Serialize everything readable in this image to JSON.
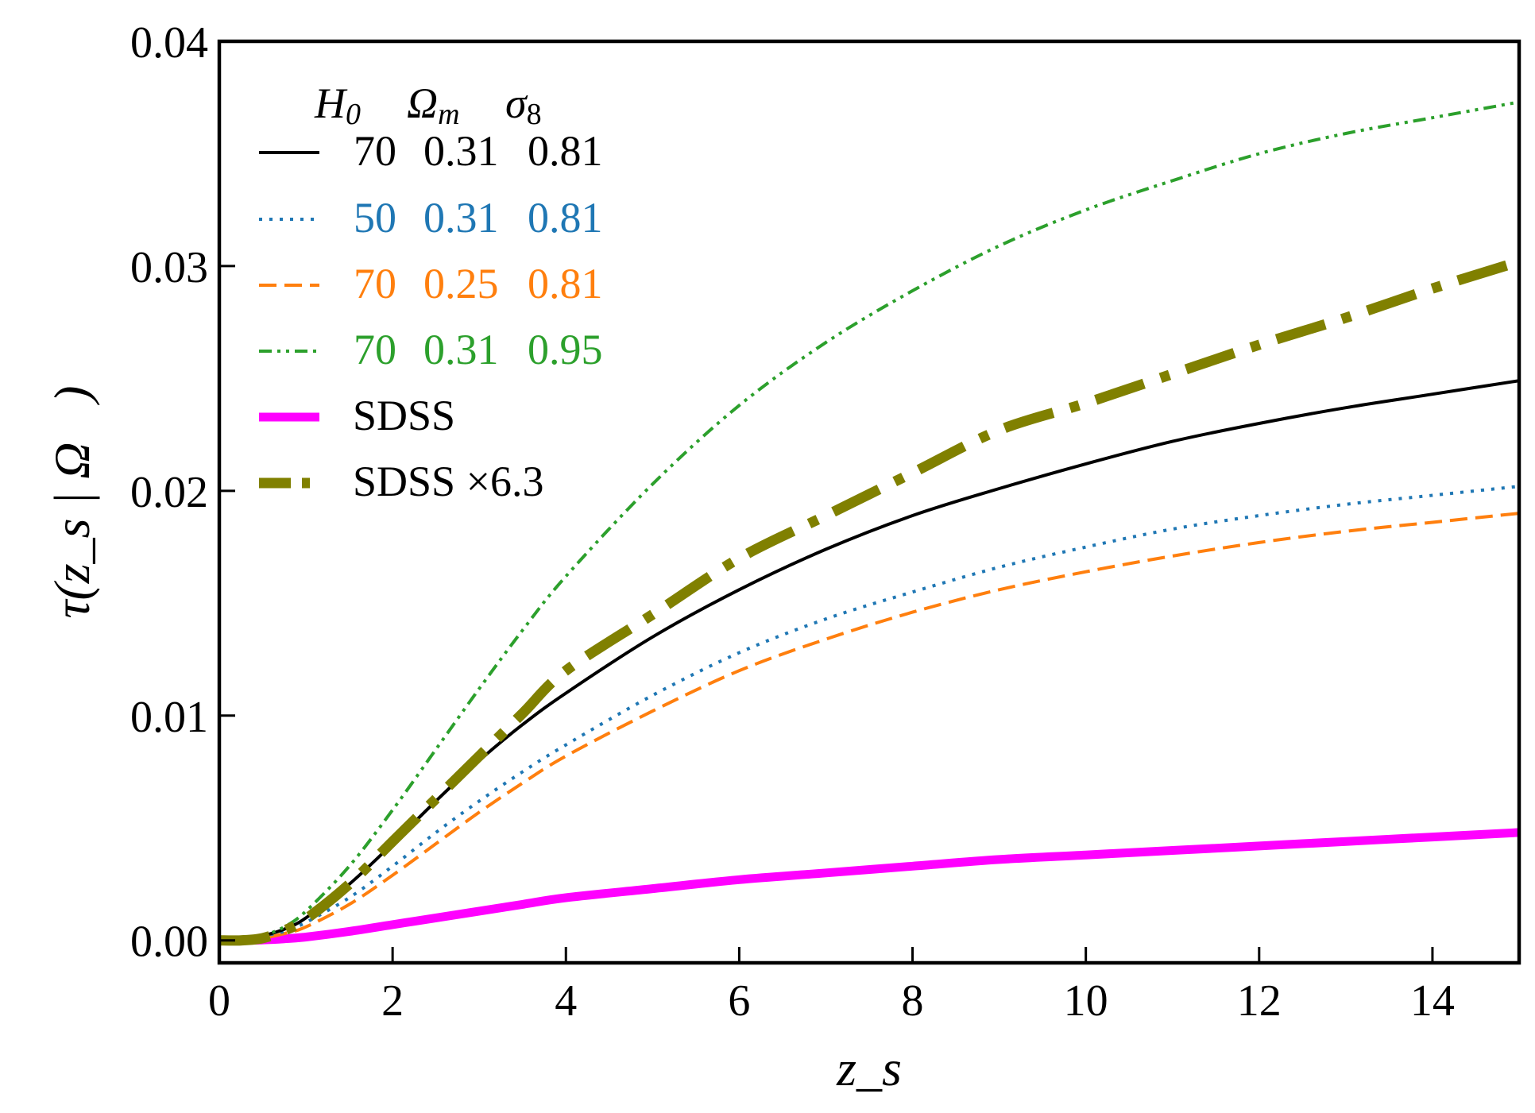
{
  "chart_data": {
    "type": "line",
    "title": "",
    "xlabel": "z_s",
    "ylabel": "τ(z_s | Ω⃗)",
    "xlim": [
      0,
      15
    ],
    "ylim": [
      -0.001,
      0.04
    ],
    "xticks": [
      0,
      2,
      4,
      6,
      8,
      10,
      12,
      14
    ],
    "xtick_labels": [
      "0",
      "2",
      "4",
      "6",
      "8",
      "10",
      "12",
      "14"
    ],
    "yticks": [
      0.0,
      0.01,
      0.02,
      0.03,
      0.04
    ],
    "ytick_labels": [
      "0.00",
      "0.01",
      "0.02",
      "0.03",
      "0.04"
    ],
    "grid": false,
    "legend": {
      "placement": "top-left",
      "header": [
        "H",
        "0",
        "Ω",
        "m",
        "σ",
        "8"
      ],
      "entries": [
        {
          "h0": "70",
          "om": "0.31",
          "s8": "0.81"
        },
        {
          "h0": "50",
          "om": "0.31",
          "s8": "0.81"
        },
        {
          "h0": "70",
          "om": "0.25",
          "s8": "0.81"
        },
        {
          "h0": "70",
          "om": "0.31",
          "s8": "0.95"
        },
        {
          "label": "SDSS"
        },
        {
          "label": "SDSS ×6.3"
        }
      ]
    },
    "x": [
      0,
      0.25,
      0.5,
      0.75,
      1,
      1.5,
      2,
      2.5,
      3,
      3.5,
      4,
      5,
      6,
      7,
      8,
      9,
      10,
      11,
      12,
      13,
      14,
      15
    ],
    "series": [
      {
        "name": "70 0.31 0.81",
        "color": "#000000",
        "style": "solid",
        "width": 4,
        "values": [
          0,
          0,
          0.0002,
          0.0005,
          0.001,
          0.0025,
          0.0043,
          0.0062,
          0.008,
          0.0096,
          0.011,
          0.0135,
          0.0156,
          0.0174,
          0.0189,
          0.0201,
          0.0212,
          0.0222,
          0.023,
          0.0237,
          0.0243,
          0.0249
        ]
      },
      {
        "name": "50 0.31 0.81",
        "color": "#1f77b4",
        "style": "dotted",
        "width": 4,
        "values": [
          0,
          0,
          0.0002,
          0.0004,
          0.0008,
          0.0019,
          0.0033,
          0.0048,
          0.0062,
          0.0075,
          0.0087,
          0.0109,
          0.0128,
          0.0143,
          0.0155,
          0.0166,
          0.0175,
          0.0183,
          0.0189,
          0.0194,
          0.0198,
          0.0202
        ]
      },
      {
        "name": "70 0.25 0.81",
        "color": "#ff7f0e",
        "style": "dashed",
        "width": 4,
        "values": [
          0,
          0,
          0.0001,
          0.0003,
          0.0006,
          0.0016,
          0.0029,
          0.0043,
          0.0057,
          0.007,
          0.0082,
          0.0102,
          0.012,
          0.0134,
          0.0146,
          0.0156,
          0.0164,
          0.0171,
          0.0177,
          0.0182,
          0.0186,
          0.019
        ]
      },
      {
        "name": "70 0.31 0.95",
        "color": "#2ca02c",
        "style": "dashdotdot",
        "width": 4,
        "values": [
          0,
          0,
          0.0002,
          0.0006,
          0.0013,
          0.0033,
          0.0058,
          0.0085,
          0.0112,
          0.0138,
          0.0162,
          0.0203,
          0.0238,
          0.0266,
          0.0289,
          0.0309,
          0.0325,
          0.0338,
          0.035,
          0.0359,
          0.0366,
          0.0373
        ]
      },
      {
        "name": "SDSS",
        "color": "#ff00ff",
        "style": "solid",
        "width": 11,
        "values": [
          0,
          0,
          2e-05,
          7e-05,
          0.00015,
          0.0004,
          0.0007,
          0.001,
          0.0013,
          0.0016,
          0.0019,
          0.0023,
          0.0027,
          0.003,
          0.0033,
          0.0036,
          0.0038,
          0.004,
          0.0042,
          0.0044,
          0.0046,
          0.0048
        ]
      },
      {
        "name": "SDSS ×6.3",
        "color": "#808000",
        "style": "dashdot",
        "width": 13,
        "values": [
          0,
          0,
          0.0001,
          0.00044,
          0.00095,
          0.0025,
          0.0044,
          0.0063,
          0.0082,
          0.0101,
          0.012,
          0.0145,
          0.017,
          0.0189,
          0.0208,
          0.0227,
          0.0239,
          0.0252,
          0.0265,
          0.0277,
          0.029,
          0.0302
        ]
      }
    ]
  }
}
